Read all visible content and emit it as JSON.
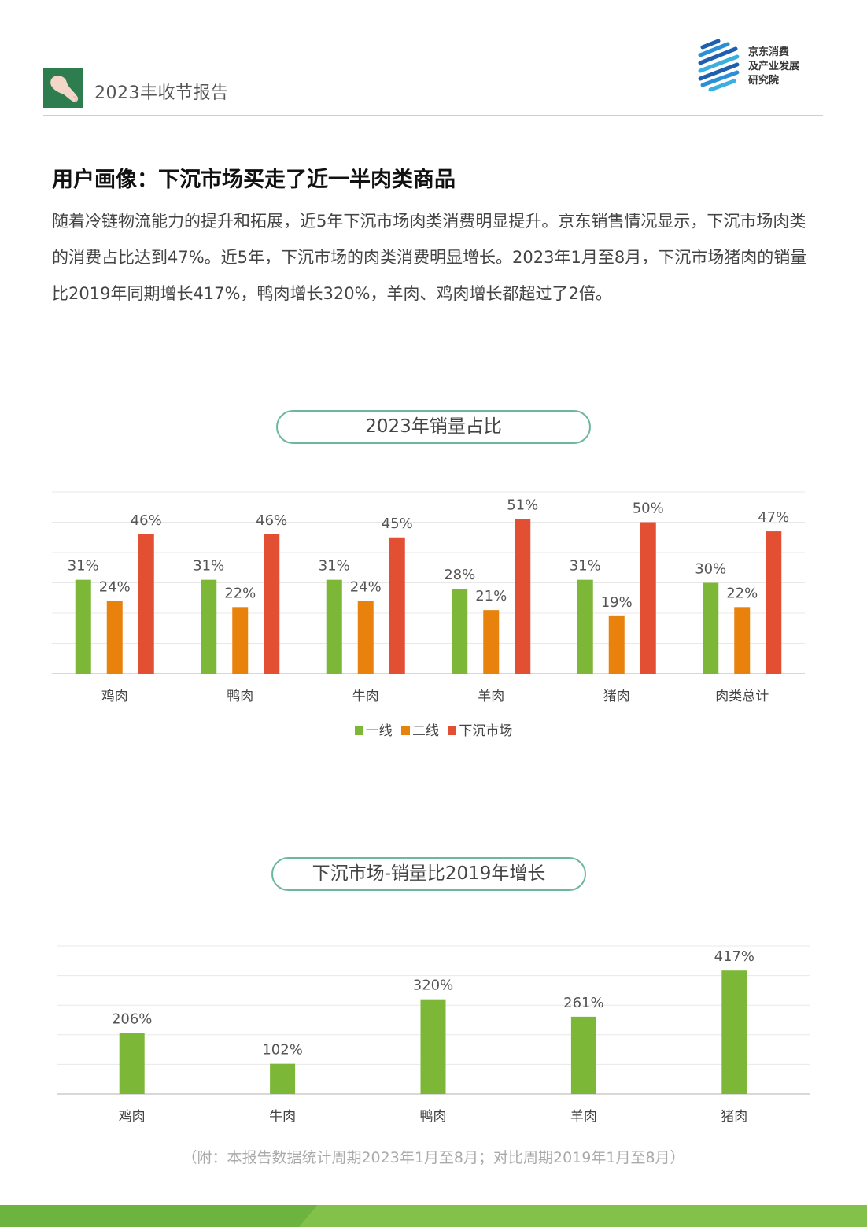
{
  "header": {
    "report_title": "2023丰收节报告",
    "logo_lines": [
      "京东消费",
      "及产业发展",
      "研究院"
    ],
    "icon": "chicken-drumstick-icon"
  },
  "section": {
    "heading": "用户画像：下沉市场买走了近一半肉类商品",
    "paragraph": "随着冷链物流能力的提升和拓展，近5年下沉市场肉类消费明显提升。京东销售情况显示，下沉市场肉类的消费占比达到47%。近5年，下沉市场的肉类消费明显增长。2023年1月至8月，下沉市场猪肉的销量比2019年同期增长417%，鸭肉增长320%，羊肉、鸡肉增长都超过了2倍。"
  },
  "colors": {
    "green": "#7cb737",
    "orange": "#e8820c",
    "red": "#e34f33",
    "pill_border": "#6cb89a"
  },
  "chart_data": [
    {
      "type": "bar",
      "title": "2023年销量占比",
      "categories": [
        "鸡肉",
        "鸭肉",
        "牛肉",
        "羊肉",
        "猪肉",
        "肉类总计"
      ],
      "series": [
        {
          "name": "一线",
          "color": "#7cb737",
          "values": [
            31,
            31,
            31,
            28,
            31,
            30
          ],
          "labels": [
            "31%",
            "31%",
            "31%",
            "28%",
            "31%",
            "30%"
          ]
        },
        {
          "name": "二线",
          "color": "#e8820c",
          "values": [
            24,
            22,
            24,
            21,
            19,
            22
          ],
          "labels": [
            "24%",
            "22%",
            "24%",
            "21%",
            "19%",
            "22%"
          ]
        },
        {
          "name": "下沉市场",
          "color": "#e34f33",
          "values": [
            46,
            46,
            45,
            51,
            50,
            47
          ],
          "labels": [
            "46%",
            "46%",
            "45%",
            "51%",
            "50%",
            "47%"
          ]
        }
      ],
      "ylim": [
        0,
        60
      ],
      "grid": true,
      "legend_position": "bottom"
    },
    {
      "type": "bar",
      "title": "下沉市场-销量比2019年增长",
      "categories": [
        "鸡肉",
        "牛肉",
        "鸭肉",
        "羊肉",
        "猪肉"
      ],
      "series": [
        {
          "color": "#7cb737",
          "values": [
            206,
            102,
            320,
            261,
            417
          ],
          "labels": [
            "206%",
            "102%",
            "320%",
            "261%",
            "417%"
          ]
        }
      ],
      "ylim": [
        0,
        500
      ],
      "grid": true,
      "legend_position": "none"
    }
  ],
  "footnote": "（附：本报告数据统计周期2023年1月至8月；对比周期2019年1月至8月）"
}
